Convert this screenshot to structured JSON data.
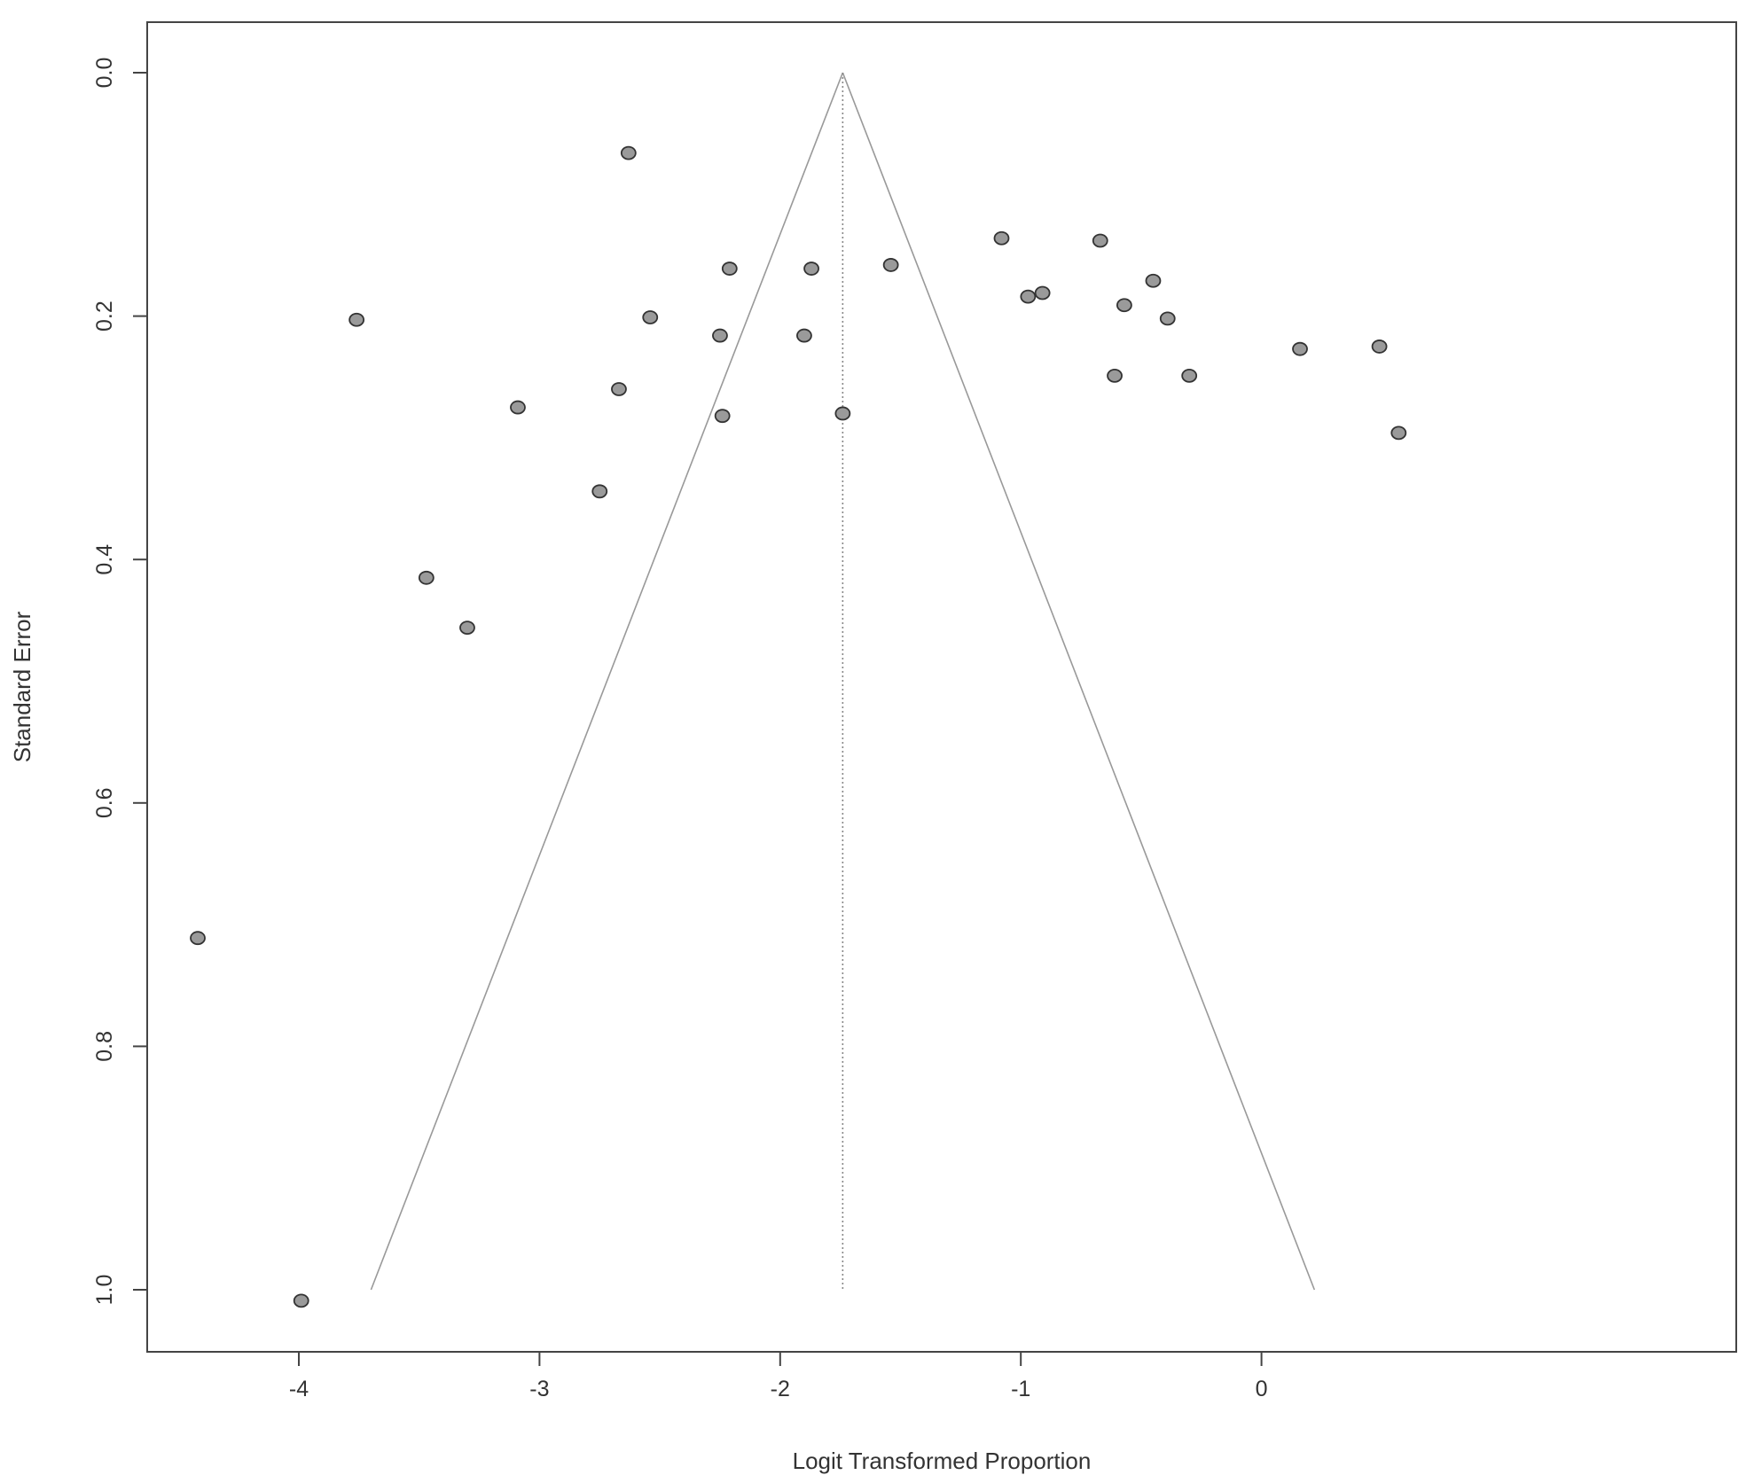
{
  "chart_data": {
    "type": "scatter",
    "title": "",
    "xlabel": "Logit Transformed Proportion",
    "ylabel": "Standard Error",
    "xlim": [
      -4.5,
      0.78
    ],
    "ylim": [
      1.05,
      -0.042
    ],
    "y_reversed": true,
    "grid": false,
    "xticks": [
      -4,
      -3,
      -2,
      -1,
      0
    ],
    "xtick_labels": [
      "-4",
      "-3",
      "-2",
      "-1",
      "0"
    ],
    "yticks": [
      0.0,
      0.2,
      0.4,
      0.6,
      0.8,
      1.0
    ],
    "ytick_labels": [
      "0.0",
      "0.2",
      "0.4",
      "0.6",
      "0.8",
      "1.0"
    ],
    "funnel": {
      "center": -1.74,
      "se_max": 1.0,
      "z": 1.96
    },
    "points": [
      {
        "x": -4.42,
        "y": 0.711
      },
      {
        "x": -3.99,
        "y": 1.009
      },
      {
        "x": -3.76,
        "y": 0.203
      },
      {
        "x": -3.47,
        "y": 0.415
      },
      {
        "x": -3.3,
        "y": 0.456
      },
      {
        "x": -3.09,
        "y": 0.275
      },
      {
        "x": -2.75,
        "y": 0.344
      },
      {
        "x": -2.67,
        "y": 0.26
      },
      {
        "x": -2.63,
        "y": 0.066
      },
      {
        "x": -2.54,
        "y": 0.201
      },
      {
        "x": -2.25,
        "y": 0.216
      },
      {
        "x": -2.24,
        "y": 0.282
      },
      {
        "x": -2.21,
        "y": 0.161
      },
      {
        "x": -1.9,
        "y": 0.216
      },
      {
        "x": -1.87,
        "y": 0.161
      },
      {
        "x": -1.74,
        "y": 0.28
      },
      {
        "x": -1.54,
        "y": 0.158
      },
      {
        "x": -1.08,
        "y": 0.136
      },
      {
        "x": -0.97,
        "y": 0.184
      },
      {
        "x": -0.91,
        "y": 0.181
      },
      {
        "x": -0.67,
        "y": 0.138
      },
      {
        "x": -0.61,
        "y": 0.249
      },
      {
        "x": -0.57,
        "y": 0.191
      },
      {
        "x": -0.45,
        "y": 0.171
      },
      {
        "x": -0.39,
        "y": 0.202
      },
      {
        "x": -0.3,
        "y": 0.249
      },
      {
        "x": 0.16,
        "y": 0.227
      },
      {
        "x": 0.49,
        "y": 0.225
      },
      {
        "x": 0.57,
        "y": 0.296
      }
    ]
  }
}
